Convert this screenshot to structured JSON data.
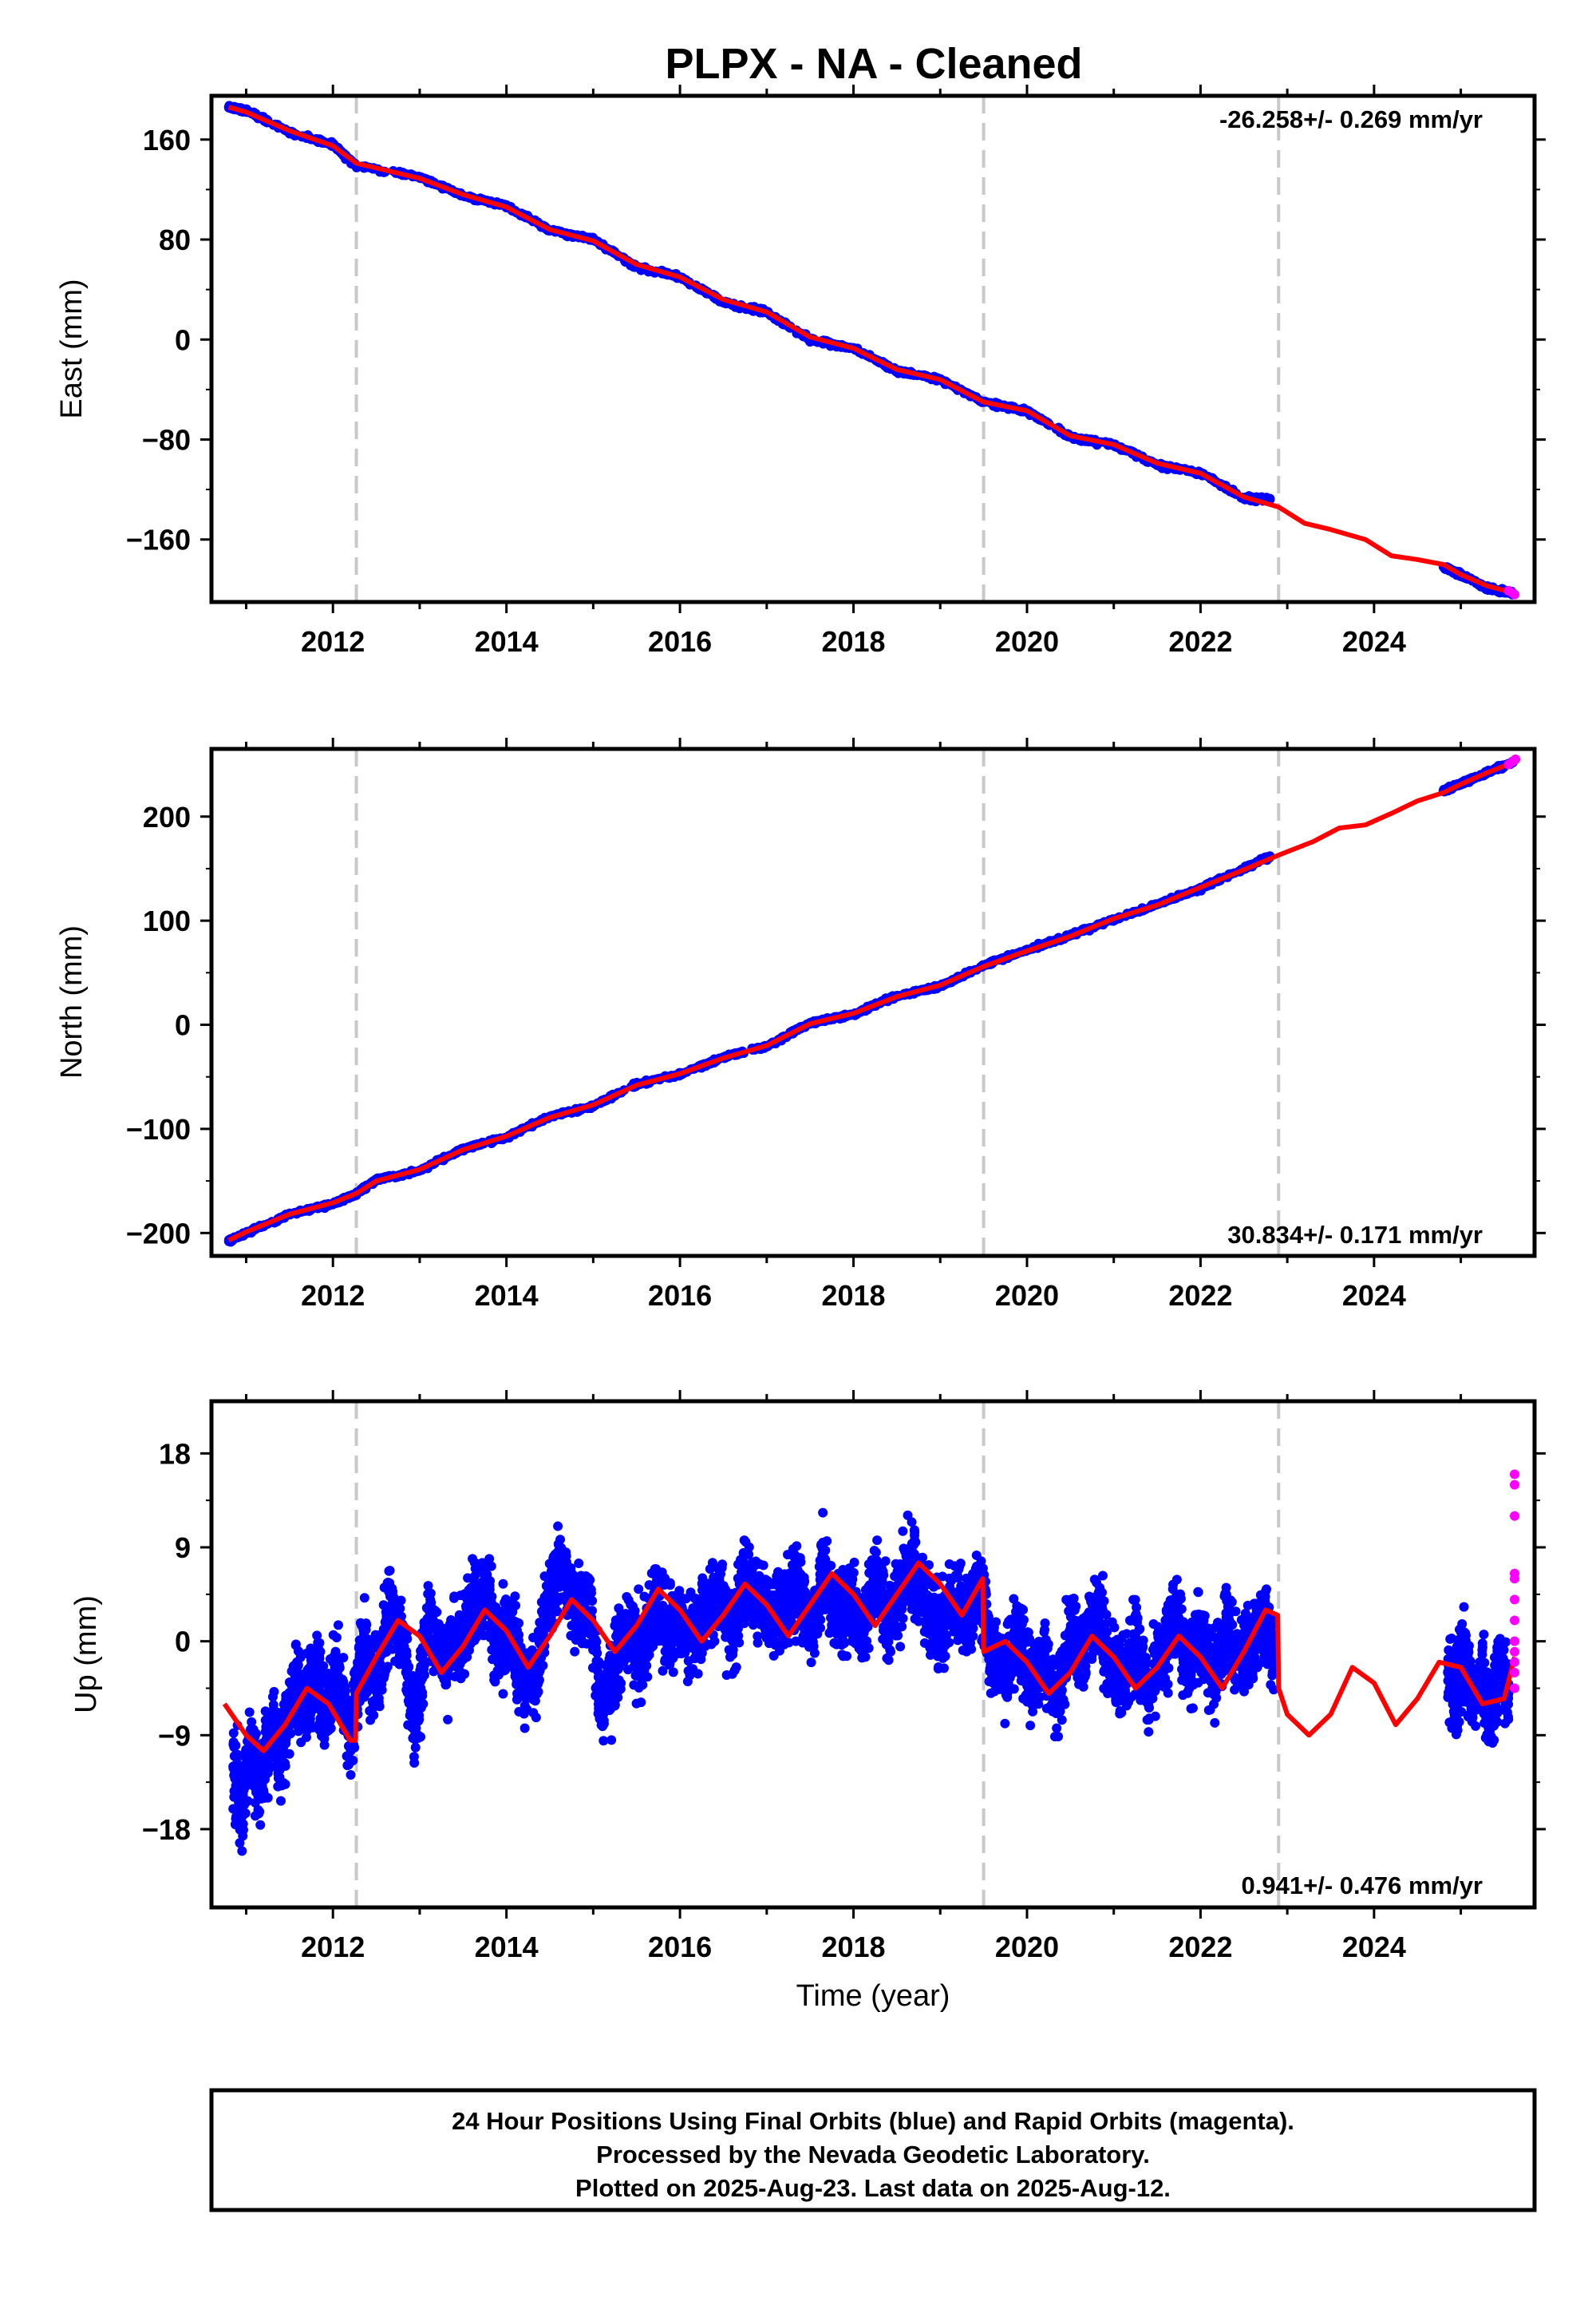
{
  "title": "PLPX  - NA - Cleaned",
  "colors": {
    "final_orbits": "#0000ff",
    "rapid_orbits": "#ff00ff",
    "model": "#ff0000",
    "steps": "#c8c8c8",
    "frame": "#000000"
  },
  "chart_data": [
    {
      "type": "scatter",
      "panel": "east",
      "ylabel": "East (mm)",
      "xlim": [
        2010.6,
        2025.85
      ],
      "ylim": [
        -210,
        195
      ],
      "yticks": [
        -160,
        -80,
        0,
        80,
        160
      ],
      "ytick_labels": [
        "−160",
        "−80",
        "0",
        "80",
        "160"
      ],
      "xticks": [
        2012,
        2014,
        2016,
        2018,
        2020,
        2022,
        2024
      ],
      "xtick_labels": [
        "2012",
        "2014",
        "2016",
        "2018",
        "2020",
        "2022",
        "2024"
      ],
      "rate_label": "-26.258+/- 0.269 mm/yr",
      "rate_position": "top-right",
      "grid": false,
      "step_lines": [
        2012.27,
        2019.5,
        2022.9
      ],
      "series": [
        {
          "role": "final",
          "x": [
            2010.8,
            2011.0,
            2011.5,
            2012.0,
            2012.27,
            2013.0,
            2013.5,
            2014.0,
            2014.5,
            2015.0,
            2015.5,
            2016.0,
            2016.5,
            2017.0,
            2017.5,
            2018.0,
            2018.5,
            2019.0,
            2019.5,
            2020.0,
            2020.5,
            2021.0,
            2021.5,
            2022.0,
            2022.5,
            2022.8,
            2024.8,
            2025.0,
            2025.3,
            2025.6
          ],
          "y": [
            186,
            183,
            166,
            156,
            139,
            130,
            115,
            107,
            87,
            80,
            58,
            50,
            30,
            22,
            0,
            -7,
            -25,
            -32,
            -50,
            -57,
            -78,
            -84,
            -100,
            -107,
            -127,
            -128,
            -182,
            -188,
            -199,
            -203
          ]
        },
        {
          "role": "rapid",
          "x": [
            2025.55,
            2025.6,
            2025.62
          ],
          "y": [
            -201,
            -203,
            -204
          ]
        }
      ],
      "model": {
        "x": [
          2010.8,
          2011.0,
          2011.5,
          2012.0,
          2012.27,
          2013.0,
          2013.5,
          2014.0,
          2014.5,
          2015.0,
          2015.5,
          2016.0,
          2016.5,
          2017.0,
          2017.5,
          2018.0,
          2018.5,
          2019.0,
          2019.5,
          2020.0,
          2020.5,
          2021.0,
          2021.5,
          2022.0,
          2022.5,
          2022.9,
          2023.2,
          2023.5,
          2023.9,
          2024.2,
          2024.5,
          2024.8,
          2025.0,
          2025.3,
          2025.62
        ],
        "y": [
          186,
          182,
          167,
          155,
          141,
          129,
          116,
          106,
          88,
          79,
          60,
          50,
          32,
          22,
          2,
          -7,
          -24,
          -32,
          -50,
          -57,
          -77,
          -84,
          -99,
          -107,
          -126,
          -134,
          -147,
          -152,
          -160,
          -173,
          -176,
          -180,
          -188,
          -197,
          -203
        ]
      }
    },
    {
      "type": "scatter",
      "panel": "north",
      "ylabel": "North (mm)",
      "xlim": [
        2010.6,
        2025.85
      ],
      "ylim": [
        -222,
        265
      ],
      "yticks": [
        -200,
        -100,
        0,
        100,
        200
      ],
      "ytick_labels": [
        "−200",
        "−100",
        "0",
        "100",
        "200"
      ],
      "xticks": [
        2012,
        2014,
        2016,
        2018,
        2020,
        2022,
        2024
      ],
      "xtick_labels": [
        "2012",
        "2014",
        "2016",
        "2018",
        "2020",
        "2022",
        "2024"
      ],
      "rate_label": "30.834+/- 0.171 mm/yr",
      "rate_position": "bottom-right",
      "grid": false,
      "step_lines": [
        2012.27,
        2019.5,
        2022.9
      ],
      "series": [
        {
          "role": "final",
          "x": [
            2010.8,
            2011.0,
            2011.5,
            2012.0,
            2012.27,
            2012.5,
            2013.0,
            2013.5,
            2014.0,
            2014.5,
            2015.0,
            2015.5,
            2016.0,
            2016.5,
            2017.0,
            2017.5,
            2018.0,
            2018.5,
            2019.0,
            2019.5,
            2020.0,
            2020.5,
            2021.0,
            2021.5,
            2022.0,
            2022.5,
            2022.8,
            2024.8,
            2025.0,
            2025.3,
            2025.6
          ],
          "y": [
            -208,
            -200,
            -182,
            -172,
            -162,
            -149,
            -140,
            -119,
            -108,
            -88,
            -78,
            -57,
            -48,
            -31,
            -21,
            2,
            10,
            28,
            37,
            57,
            72,
            86,
            101,
            116,
            131,
            150,
            162,
            225,
            232,
            242,
            252
          ]
        },
        {
          "role": "rapid",
          "x": [
            2025.55,
            2025.6,
            2025.63
          ],
          "y": [
            250,
            253,
            255
          ]
        }
      ],
      "model": {
        "x": [
          2010.8,
          2011.0,
          2011.5,
          2012.0,
          2012.27,
          2012.5,
          2013.0,
          2013.5,
          2014.0,
          2014.5,
          2015.0,
          2015.5,
          2016.0,
          2016.5,
          2017.0,
          2017.5,
          2018.0,
          2018.5,
          2019.0,
          2019.5,
          2020.0,
          2020.5,
          2021.0,
          2021.5,
          2022.0,
          2022.5,
          2022.9,
          2023.3,
          2023.6,
          2023.9,
          2024.2,
          2024.5,
          2024.8,
          2025.0,
          2025.3,
          2025.63
        ],
        "y": [
          -207,
          -199,
          -182,
          -171,
          -162,
          -150,
          -139,
          -120,
          -107,
          -89,
          -77,
          -58,
          -47,
          -32,
          -20,
          1,
          11,
          27,
          38,
          56,
          71,
          85,
          102,
          115,
          132,
          149,
          163,
          176,
          189,
          192,
          203,
          215,
          223,
          231,
          242,
          253
        ]
      }
    },
    {
      "type": "scatter",
      "panel": "up",
      "ylabel": "Up (mm)",
      "xlabel": "Time (year)",
      "xlim": [
        2010.6,
        2025.85
      ],
      "ylim": [
        -25.5,
        23
      ],
      "yticks": [
        -18,
        -9,
        0,
        9,
        18
      ],
      "ytick_labels": [
        "−18",
        "−9",
        "0",
        "9",
        "18"
      ],
      "xticks": [
        2012,
        2014,
        2016,
        2018,
        2020,
        2022,
        2024
      ],
      "xtick_labels": [
        "2012",
        "2014",
        "2016",
        "2018",
        "2020",
        "2022",
        "2024"
      ],
      "rate_label": "0.941+/- 0.476 mm/yr",
      "rate_position": "bottom-right",
      "grid": false,
      "step_lines": [
        2012.27,
        2019.5,
        2022.9
      ],
      "series": [
        {
          "role": "final",
          "x": [
            2010.85,
            2010.95,
            2011.05,
            2011.15,
            2011.3,
            2011.4,
            2011.55,
            2011.7,
            2011.8,
            2011.9,
            2012.05,
            2012.2,
            2012.35,
            2012.5,
            2012.65,
            2012.8,
            2012.95,
            2013.1,
            2013.3,
            2013.45,
            2013.6,
            2013.75,
            2013.9,
            2014.05,
            2014.2,
            2014.35,
            2014.5,
            2014.65,
            2014.8,
            2014.95,
            2015.1,
            2015.25,
            2015.4,
            2015.55,
            2015.7,
            2015.85,
            2016.0,
            2016.15,
            2016.3,
            2016.45,
            2016.6,
            2016.75,
            2016.9,
            2017.05,
            2017.2,
            2017.35,
            2017.5,
            2017.65,
            2017.8,
            2017.95,
            2018.1,
            2018.25,
            2018.4,
            2018.55,
            2018.7,
            2018.85,
            2019.0,
            2019.15,
            2019.3,
            2019.45,
            2019.6,
            2019.75,
            2019.9,
            2020.05,
            2020.2,
            2020.35,
            2020.5,
            2020.65,
            2020.8,
            2020.95,
            2021.1,
            2021.25,
            2021.4,
            2021.55,
            2021.7,
            2021.85,
            2022.0,
            2022.15,
            2022.3,
            2022.45,
            2022.6,
            2022.75,
            2022.85,
            2024.85,
            2024.95,
            2025.05,
            2025.15,
            2025.25,
            2025.35,
            2025.45,
            2025.55
          ],
          "y": [
            -12,
            -16,
            -10,
            -14,
            -8,
            -11,
            -4,
            -6,
            -2,
            -7,
            -3,
            -9,
            -1,
            -4,
            3,
            0,
            -8,
            2,
            -2,
            1,
            3,
            5,
            -1,
            1,
            -4,
            -3,
            5,
            8,
            2,
            4,
            -6,
            -3,
            1,
            -2,
            4,
            1,
            2,
            0,
            3,
            5,
            1,
            6,
            4,
            2,
            3,
            6,
            1,
            7,
            2,
            4,
            1,
            6,
            2,
            5,
            7,
            3,
            1,
            4,
            2,
            5,
            -1,
            -3,
            1,
            -4,
            -2,
            -6,
            1,
            -1,
            3,
            -2,
            -3,
            0,
            -5,
            -1,
            2,
            -2,
            0,
            -3,
            1,
            -2,
            0,
            2,
            -1,
            -3,
            -5,
            -1,
            -6,
            -4,
            -7,
            -2,
            -5
          ]
        },
        {
          "role": "rapid",
          "x": [
            2025.62,
            2025.62,
            2025.62,
            2025.62,
            2025.62,
            2025.62,
            2025.62,
            2025.62,
            2025.62,
            2025.62,
            2025.62,
            2025.62
          ],
          "y": [
            16,
            15,
            12,
            6.5,
            6,
            4,
            2,
            0,
            -1,
            -2,
            -3,
            -4.5
          ]
        }
      ],
      "model": {
        "x": [
          2010.75,
          2011.0,
          2011.2,
          2011.45,
          2011.7,
          2011.95,
          2012.2,
          2012.26,
          2012.27,
          2012.5,
          2012.75,
          2013.0,
          2013.25,
          2013.5,
          2013.75,
          2014.0,
          2014.25,
          2014.5,
          2014.75,
          2015.0,
          2015.25,
          2015.5,
          2015.75,
          2016.0,
          2016.25,
          2016.5,
          2016.75,
          2017.0,
          2017.25,
          2017.5,
          2017.75,
          2018.0,
          2018.25,
          2018.5,
          2018.75,
          2019.0,
          2019.25,
          2019.49,
          2019.5,
          2019.75,
          2020.0,
          2020.25,
          2020.5,
          2020.75,
          2021.0,
          2021.25,
          2021.5,
          2021.75,
          2022.0,
          2022.25,
          2022.5,
          2022.75,
          2022.89,
          2022.9,
          2023.0,
          2023.25,
          2023.5,
          2023.75,
          2024.0,
          2024.25,
          2024.5,
          2024.75,
          2025.0,
          2025.25,
          2025.5,
          2025.62
        ],
        "y": [
          -6,
          -9,
          -10.5,
          -8,
          -4.5,
          -6,
          -9.5,
          -9.5,
          -5,
          -1.5,
          2,
          0.5,
          -3,
          -0.5,
          3,
          1,
          -2.5,
          0.5,
          4,
          2,
          -1,
          1.5,
          5,
          3,
          0,
          2.5,
          5.5,
          3.5,
          0.5,
          3.5,
          6.5,
          4.5,
          1.5,
          4.5,
          7.5,
          5.5,
          2.5,
          6,
          -1,
          0,
          -2,
          -5,
          -3,
          0.5,
          -1.5,
          -4.5,
          -2.5,
          0.5,
          -1.5,
          -4.5,
          -1,
          3,
          2.5,
          -4.5,
          -7,
          -9,
          -7,
          -2.5,
          -4,
          -8,
          -5.5,
          -2,
          -2.5,
          -6,
          -5.5,
          -1.5
        ]
      }
    }
  ],
  "footer": {
    "line1": "24 Hour Positions Using Final Orbits (blue) and Rapid Orbits (magenta).",
    "line2": "Processed by the Nevada Geodetic Laboratory.",
    "line3": "Plotted on 2025-Aug-23. Last data on 2025-Aug-12."
  }
}
